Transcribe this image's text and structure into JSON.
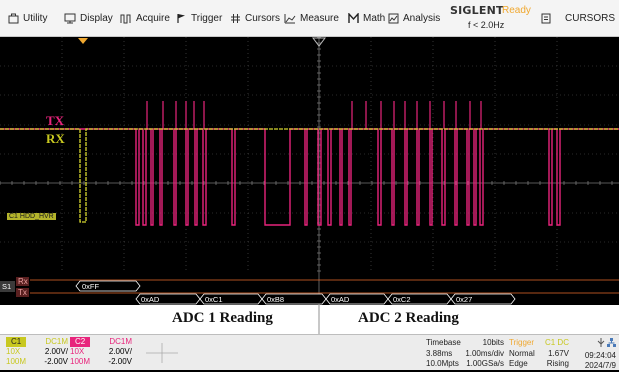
{
  "menu": {
    "utility": "Utility",
    "display": "Display",
    "acquire": "Acquire",
    "trigger": "Trigger",
    "cursors": "Cursors",
    "measure": "Measure",
    "math": "Math",
    "analysis": "Analysis",
    "cursors_panel": "CURSORS"
  },
  "brand": {
    "name": "SIGLENT",
    "status": "Ready",
    "freq": "f < 2.0Hz"
  },
  "colors": {
    "c1": "#d6d830",
    "c2": "#e8247c",
    "tx_label": "#e8247c",
    "rx_label": "#c8c820",
    "accent": "#f0a830"
  },
  "scope": {
    "tx_label": "TX",
    "rx_label": "RX",
    "c1_marker": "C1 HDD_HVR",
    "bus_label": "S1",
    "decode_rx_label": "Rx",
    "decode_tx_label": "Tx",
    "rx_frames": [
      "0xFF"
    ],
    "tx_frames": [
      "0xAD",
      "0xC1",
      "0xB8",
      "0xAD",
      "0xC2",
      "0x27"
    ]
  },
  "annotations": {
    "adc1": "ADC 1 Reading",
    "adc2": "ADC 2 Reading"
  },
  "channels": {
    "c1": {
      "name": "C1",
      "coupling": "DC1M",
      "probe": "10X",
      "scale": "2.00V/",
      "bw": "100M",
      "offset": "-2.00V"
    },
    "c2": {
      "name": "C2",
      "coupling": "DC1M",
      "probe": "10X",
      "scale": "2.00V/",
      "bw": "100M",
      "offset": "-2.00V"
    }
  },
  "timebase": {
    "label": "Timebase",
    "bits": "10bits",
    "delay": "3.88ms",
    "scale": "1.00ms/div",
    "points": "10.0Mpts",
    "rate": "1.00GSa/s"
  },
  "trigger": {
    "label": "Trigger",
    "source": "C1 DC",
    "mode": "Normal",
    "level": "1.67V",
    "type": "Edge",
    "slope": "Rising"
  },
  "clock": {
    "time": "09:24:04",
    "date": "2024/7/9"
  }
}
